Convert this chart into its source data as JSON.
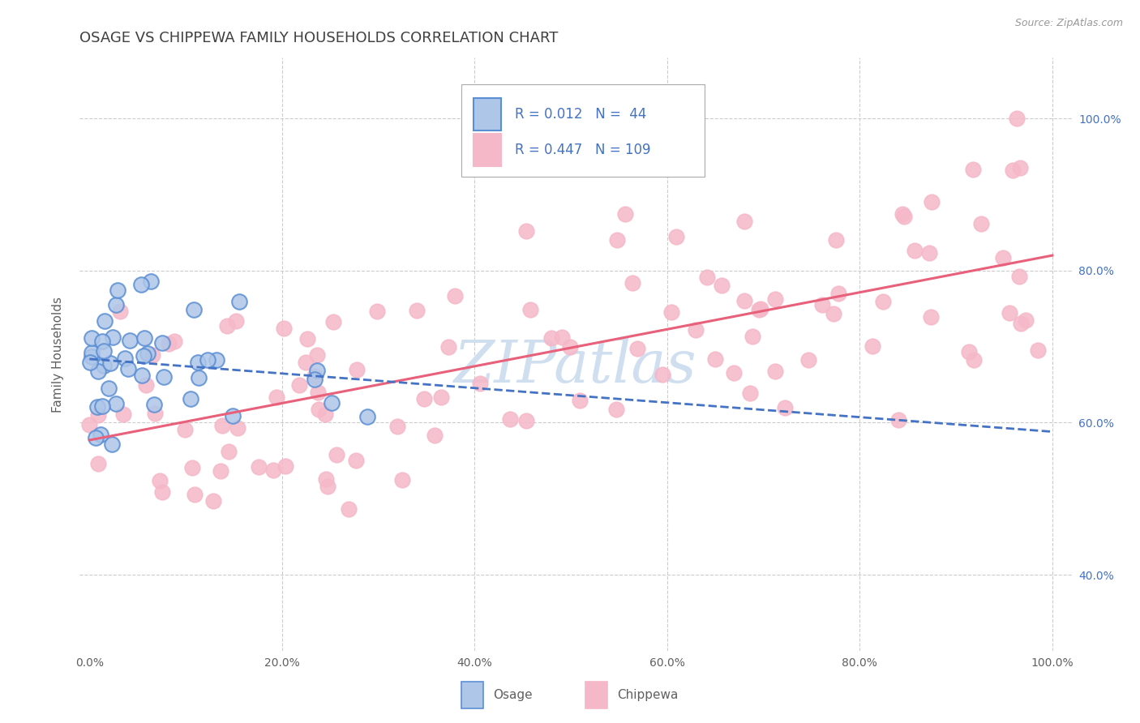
{
  "title": "OSAGE VS CHIPPEWA FAMILY HOUSEHOLDS CORRELATION CHART",
  "source": "Source: ZipAtlas.com",
  "ylabel": "Family Households",
  "xlim": [
    -0.01,
    1.02
  ],
  "ylim": [
    0.3,
    1.08
  ],
  "ytick_labels": [
    "40.0%",
    "60.0%",
    "80.0%",
    "100.0%"
  ],
  "ytick_values": [
    0.4,
    0.6,
    0.8,
    1.0
  ],
  "xtick_labels": [
    "0.0%",
    "20.0%",
    "40.0%",
    "60.0%",
    "80.0%",
    "100.0%"
  ],
  "xtick_values": [
    0.0,
    0.2,
    0.4,
    0.6,
    0.8,
    1.0
  ],
  "legend_osage_R": "0.012",
  "legend_osage_N": "44",
  "legend_chippewa_R": "0.447",
  "legend_chippewa_N": "109",
  "osage_face_color": "#aec6e8",
  "osage_edge_color": "#5b8fd4",
  "chippewa_face_color": "#f5b8c8",
  "chippewa_edge_color": "#f5b8c8",
  "osage_line_color": "#4472c4",
  "chippewa_line_color": "#e8607a",
  "title_color": "#404040",
  "legend_text_color": "#4472c4",
  "axis_label_color": "#606060",
  "tick_label_color": "#606060",
  "background_color": "#ffffff",
  "grid_color": "#cccccc",
  "watermark_color": "#d0dff0",
  "watermark": "ZIPatlas",
  "bottom_legend_osage": "Osage",
  "bottom_legend_chippewa": "Chippewa"
}
